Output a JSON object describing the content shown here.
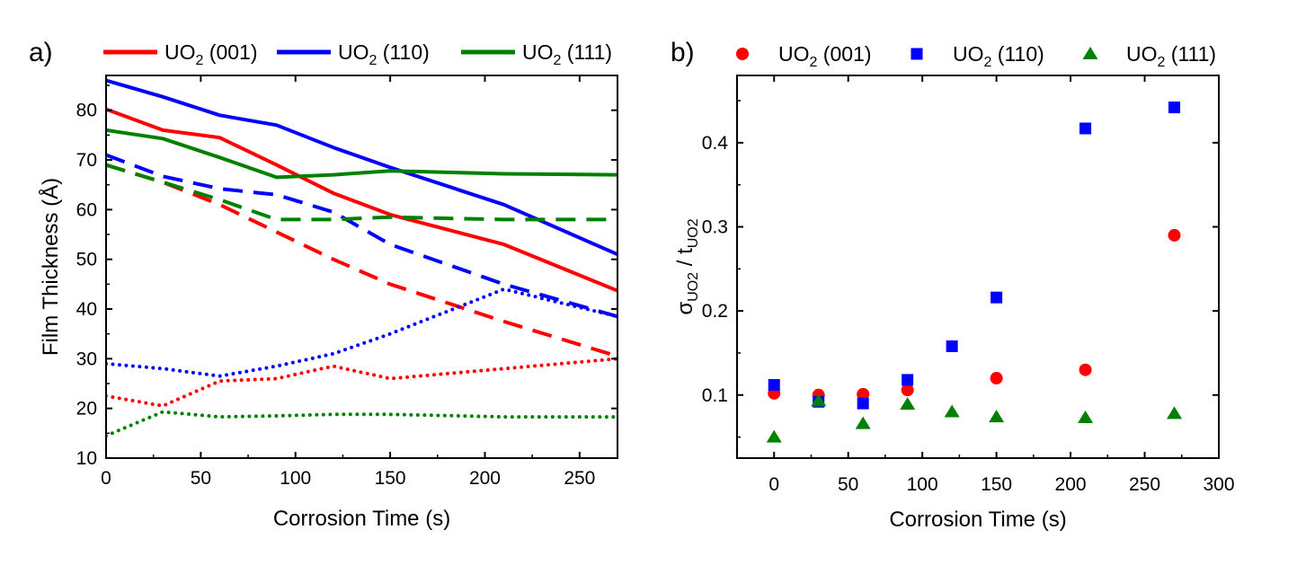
{
  "chart_data": [
    {
      "type": "line",
      "panel_label": "a)",
      "xlabel": "Corrosion Time (s)",
      "ylabel": "Film Thickness (Å)",
      "xlim": [
        0,
        270
      ],
      "ylim": [
        10,
        87
      ],
      "xticks": [
        0,
        50,
        100,
        150,
        200,
        250
      ],
      "yticks": [
        10,
        20,
        30,
        40,
        50,
        60,
        70,
        80
      ],
      "legend_position": "top",
      "legend": [
        {
          "prefix": "UO",
          "sub": "2",
          "suffix": " (001)",
          "color": "#ff0000"
        },
        {
          "prefix": "UO",
          "sub": "2",
          "suffix": "  (110)",
          "color": "#0000ff"
        },
        {
          "prefix": "UO",
          "sub": "2",
          "suffix": " (111)",
          "color": "#008000"
        }
      ],
      "series": [
        {
          "color": "#ff0000",
          "style": "solid",
          "x": [
            0,
            30,
            60,
            90,
            120,
            150,
            210,
            270
          ],
          "y": [
            80.2,
            76,
            74.5,
            69,
            63.3,
            59,
            53,
            43.7
          ]
        },
        {
          "color": "#ff0000",
          "style": "dashed",
          "x": [
            0,
            30,
            60,
            90,
            120,
            150,
            210,
            270
          ],
          "y": [
            69,
            65.5,
            61,
            55.5,
            50,
            45,
            37.5,
            30.5
          ]
        },
        {
          "color": "#ff0000",
          "style": "dotted",
          "x": [
            0,
            30,
            60,
            90,
            120,
            150,
            210,
            270
          ],
          "y": [
            22.5,
            20.5,
            25.5,
            26,
            28.5,
            26,
            28,
            30
          ]
        },
        {
          "color": "#0000ff",
          "style": "solid",
          "x": [
            0,
            30,
            60,
            90,
            120,
            150,
            210,
            270
          ],
          "y": [
            86,
            82.7,
            79,
            77,
            72.5,
            68.5,
            61,
            51
          ]
        },
        {
          "color": "#0000ff",
          "style": "dashed",
          "x": [
            0,
            30,
            60,
            90,
            120,
            150,
            210,
            270
          ],
          "y": [
            71,
            66.7,
            64.2,
            63,
            59.5,
            53,
            45,
            38.5
          ]
        },
        {
          "color": "#0000ff",
          "style": "dotted",
          "x": [
            0,
            30,
            60,
            90,
            120,
            150,
            210,
            270
          ],
          "y": [
            29,
            28,
            26.5,
            28.5,
            31,
            35,
            44,
            38.5
          ]
        },
        {
          "color": "#008000",
          "style": "solid",
          "x": [
            0,
            30,
            60,
            90,
            120,
            150,
            210,
            270
          ],
          "y": [
            76,
            74.3,
            70.5,
            66.5,
            67,
            67.8,
            67.2,
            67
          ]
        },
        {
          "color": "#008000",
          "style": "dashed",
          "x": [
            0,
            30,
            60,
            90,
            120,
            150,
            210,
            270
          ],
          "y": [
            69,
            65.5,
            62,
            58,
            58,
            58.5,
            58,
            58
          ]
        },
        {
          "color": "#008000",
          "style": "dotted",
          "x": [
            0,
            30,
            60,
            90,
            120,
            150,
            210,
            270
          ],
          "y": [
            14.5,
            19.3,
            18.3,
            18.5,
            18.8,
            18.8,
            18.3,
            18.3
          ]
        }
      ]
    },
    {
      "type": "scatter",
      "panel_label": "b)",
      "xlabel": "Corrosion Time (s)",
      "ylabel_main": "σ",
      "ylabel_sub1": "UO2",
      "ylabel_mid": " / t",
      "ylabel_sub2": "UO2",
      "xlim": [
        -25,
        300
      ],
      "ylim": [
        0.025,
        0.48
      ],
      "xticks": [
        0,
        50,
        100,
        150,
        200,
        250,
        300
      ],
      "yticks": [
        0.1,
        0.2,
        0.3,
        0.4
      ],
      "legend_position": "top",
      "series": [
        {
          "prefix": "UO",
          "sub": "2",
          "suffix": " (001)",
          "color": "#ff0000",
          "marker": "circle",
          "x": [
            0,
            30,
            60,
            90,
            150,
            210,
            270
          ],
          "y": [
            0.102,
            0.1,
            0.101,
            0.106,
            0.12,
            0.13,
            0.29
          ]
        },
        {
          "prefix": "UO",
          "sub": "2",
          "suffix": " (110)",
          "color": "#0000ff",
          "marker": "square",
          "x": [
            0,
            30,
            60,
            90,
            120,
            150,
            210,
            270
          ],
          "y": [
            0.112,
            0.092,
            0.09,
            0.118,
            0.158,
            0.216,
            0.417,
            0.442
          ]
        },
        {
          "prefix": "UO",
          "sub": "2",
          "suffix": " (111)",
          "color": "#008000",
          "marker": "triangle",
          "x": [
            0,
            30,
            60,
            90,
            120,
            150,
            210,
            270
          ],
          "y": [
            0.05,
            0.093,
            0.066,
            0.089,
            0.08,
            0.074,
            0.073,
            0.078
          ]
        }
      ]
    }
  ]
}
